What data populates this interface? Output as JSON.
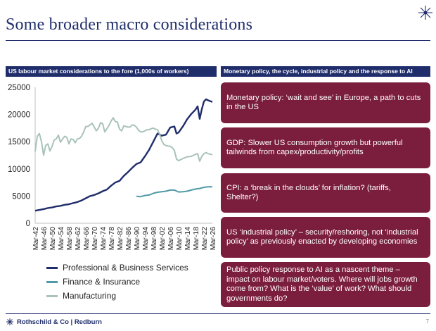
{
  "slide": {
    "title": "Some broader macro considerations",
    "page_number": "7",
    "footer_brand": "Rothschild & Co | Redburn"
  },
  "left_panel": {
    "header": "US labour market considerations to the fore (1,000s of workers)"
  },
  "right_panel": {
    "header": "Monetary policy, the cycle, industrial policy and the response to AI",
    "cards": [
      "Monetary policy: ‘wait and see’ in Europe, a path to cuts in the US",
      "GDP: Slower US consumption growth but powerful tailwinds from capex/productivity/profits",
      "CPI: a ‘break in the clouds’ for inflation? (tariffs, Shelter?)",
      "US ‘industrial policy’ – security/reshoring, not ‘industrial policy’ as previously enacted by developing economies",
      "Public policy response to AI as a nascent theme – impact on labour market/voters. Where will jobs growth come from? What is the ‘value’ of work? What should governments do?"
    ]
  },
  "colors": {
    "navy": "#1f2d6b",
    "maroon": "#7b1e3e",
    "finance": "#4f9aa6",
    "manufacturing": "#a9c3b8"
  },
  "chart_data": {
    "type": "line",
    "title": "",
    "xlabel": "",
    "ylabel": "",
    "ylim": [
      0,
      25000
    ],
    "yticks": [
      "0",
      "5000",
      "10000",
      "15000",
      "20000",
      "25000"
    ],
    "xticks": [
      "Mar-42",
      "Mar-46",
      "Mar-50",
      "Mar-54",
      "Mar-58",
      "Mar-62",
      "Mar-66",
      "Mar-70",
      "Mar-74",
      "Mar-78",
      "Mar-82",
      "Mar-86",
      "Mar-90",
      "Mar-94",
      "Mar-98",
      "Mar-02",
      "Mar-06",
      "Mar-10",
      "Mar-14",
      "Mar-18",
      "Mar-22",
      "Mar-26"
    ],
    "xlim": [
      1942,
      2026
    ],
    "grid": false,
    "legend_position": "bottom",
    "series": [
      {
        "name": "Professional & Business Services",
        "color": "#1f2d6b",
        "points": [
          [
            1942,
            2300
          ],
          [
            1944,
            2450
          ],
          [
            1946,
            2600
          ],
          [
            1948,
            2800
          ],
          [
            1950,
            2900
          ],
          [
            1952,
            3100
          ],
          [
            1954,
            3200
          ],
          [
            1956,
            3400
          ],
          [
            1958,
            3500
          ],
          [
            1960,
            3700
          ],
          [
            1962,
            3900
          ],
          [
            1964,
            4200
          ],
          [
            1966,
            4600
          ],
          [
            1968,
            5000
          ],
          [
            1970,
            5200
          ],
          [
            1972,
            5500
          ],
          [
            1974,
            5900
          ],
          [
            1976,
            6200
          ],
          [
            1978,
            6900
          ],
          [
            1980,
            7500
          ],
          [
            1982,
            7800
          ],
          [
            1984,
            8700
          ],
          [
            1986,
            9400
          ],
          [
            1988,
            10200
          ],
          [
            1990,
            10900
          ],
          [
            1992,
            11200
          ],
          [
            1994,
            12300
          ],
          [
            1996,
            13500
          ],
          [
            1998,
            15000
          ],
          [
            2000,
            16500
          ],
          [
            2002,
            16100
          ],
          [
            2004,
            16300
          ],
          [
            2006,
            17600
          ],
          [
            2008,
            17800
          ],
          [
            2009,
            16500
          ],
          [
            2010,
            16700
          ],
          [
            2012,
            17800
          ],
          [
            2014,
            19100
          ],
          [
            2016,
            20100
          ],
          [
            2018,
            20900
          ],
          [
            2019,
            21500
          ],
          [
            2020,
            19200
          ],
          [
            2021,
            21000
          ],
          [
            2022,
            22400
          ],
          [
            2023,
            22800
          ],
          [
            2024,
            22600
          ],
          [
            2026,
            22300
          ]
        ]
      },
      {
        "name": "Finance & Insurance",
        "color": "#4f9aa6",
        "points": [
          [
            1990,
            4950
          ],
          [
            1992,
            4900
          ],
          [
            1994,
            5100
          ],
          [
            1996,
            5200
          ],
          [
            1998,
            5500
          ],
          [
            2000,
            5700
          ],
          [
            2002,
            5800
          ],
          [
            2004,
            5900
          ],
          [
            2006,
            6100
          ],
          [
            2008,
            6100
          ],
          [
            2010,
            5750
          ],
          [
            2012,
            5800
          ],
          [
            2014,
            5900
          ],
          [
            2016,
            6100
          ],
          [
            2018,
            6300
          ],
          [
            2020,
            6400
          ],
          [
            2022,
            6600
          ],
          [
            2024,
            6700
          ],
          [
            2026,
            6700
          ]
        ]
      },
      {
        "name": "Manufacturing",
        "color": "#a9c3b8",
        "points": [
          [
            1942,
            13200
          ],
          [
            1943,
            16000
          ],
          [
            1944,
            16500
          ],
          [
            1945,
            15000
          ],
          [
            1946,
            12500
          ],
          [
            1947,
            14300
          ],
          [
            1948,
            14600
          ],
          [
            1949,
            13300
          ],
          [
            1950,
            14100
          ],
          [
            1951,
            15300
          ],
          [
            1952,
            15500
          ],
          [
            1953,
            16200
          ],
          [
            1954,
            14900
          ],
          [
            1955,
            15500
          ],
          [
            1956,
            16000
          ],
          [
            1957,
            15800
          ],
          [
            1958,
            14600
          ],
          [
            1959,
            15500
          ],
          [
            1960,
            15400
          ],
          [
            1961,
            14800
          ],
          [
            1962,
            15500
          ],
          [
            1963,
            15600
          ],
          [
            1964,
            16000
          ],
          [
            1965,
            16800
          ],
          [
            1966,
            17800
          ],
          [
            1967,
            17800
          ],
          [
            1968,
            18100
          ],
          [
            1969,
            18400
          ],
          [
            1970,
            17700
          ],
          [
            1971,
            17000
          ],
          [
            1972,
            17500
          ],
          [
            1973,
            18500
          ],
          [
            1974,
            18300
          ],
          [
            1975,
            16800
          ],
          [
            1976,
            17400
          ],
          [
            1977,
            18000
          ],
          [
            1978,
            18800
          ],
          [
            1979,
            19400
          ],
          [
            1980,
            18700
          ],
          [
            1981,
            18600
          ],
          [
            1982,
            17300
          ],
          [
            1983,
            17000
          ],
          [
            1984,
            17900
          ],
          [
            1985,
            17800
          ],
          [
            1986,
            17700
          ],
          [
            1987,
            17700
          ],
          [
            1988,
            18100
          ],
          [
            1989,
            18000
          ],
          [
            1990,
            17700
          ],
          [
            1991,
            17100
          ],
          [
            1992,
            16800
          ],
          [
            1993,
            16800
          ],
          [
            1994,
            17000
          ],
          [
            1995,
            17200
          ],
          [
            1996,
            17200
          ],
          [
            1997,
            17400
          ],
          [
            1998,
            17500
          ],
          [
            1999,
            17300
          ],
          [
            2000,
            17200
          ],
          [
            2001,
            16400
          ],
          [
            2002,
            15200
          ],
          [
            2003,
            14500
          ],
          [
            2004,
            14300
          ],
          [
            2005,
            14200
          ],
          [
            2006,
            14150
          ],
          [
            2007,
            13900
          ],
          [
            2008,
            13400
          ],
          [
            2009,
            11800
          ],
          [
            2010,
            11500
          ],
          [
            2012,
            11900
          ],
          [
            2014,
            12200
          ],
          [
            2016,
            12300
          ],
          [
            2018,
            12700
          ],
          [
            2019,
            12800
          ],
          [
            2020,
            11400
          ],
          [
            2021,
            12300
          ],
          [
            2022,
            12800
          ],
          [
            2023,
            13000
          ],
          [
            2024,
            12800
          ],
          [
            2026,
            12600
          ]
        ]
      }
    ]
  }
}
